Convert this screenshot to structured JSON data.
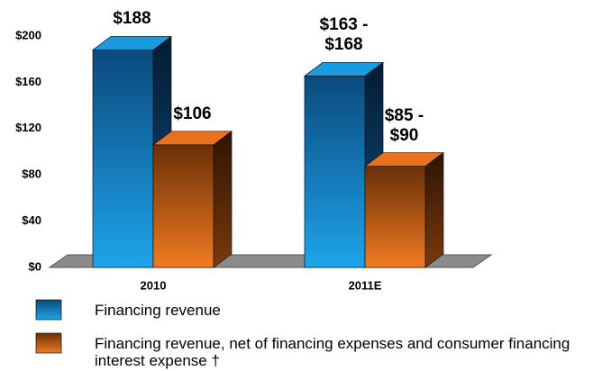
{
  "chart_data": {
    "type": "bar3d",
    "categories": [
      "2010",
      "2011E"
    ],
    "series": [
      {
        "name": "Financing revenue",
        "color": "#1a9be0",
        "values": [
          188,
          165.5
        ],
        "value_labels": [
          "$188",
          "$163 - $168"
        ]
      },
      {
        "name": "Financing revenue, net of financing expenses and consumer financing interest expense †",
        "color": "#e8721e",
        "values": [
          106,
          87.5
        ],
        "value_labels": [
          "$106",
          "$85 - $90"
        ]
      }
    ],
    "ylim": [
      0,
      200
    ],
    "yticks": [
      {
        "value": 0,
        "label": "$0"
      },
      {
        "value": 40,
        "label": "$40"
      },
      {
        "value": 80,
        "label": "$80"
      },
      {
        "value": 120,
        "label": "$120"
      },
      {
        "value": 160,
        "label": "$160"
      },
      {
        "value": 200,
        "label": "$200"
      }
    ],
    "grid": false
  }
}
